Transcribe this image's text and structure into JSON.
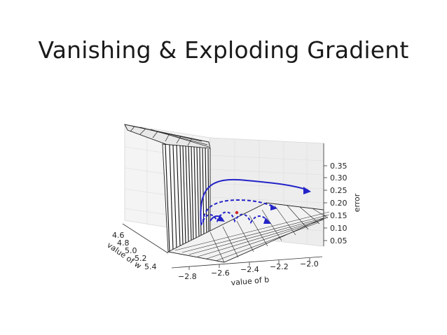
{
  "slide": {
    "title": "Vanishing & Exploding Gradient"
  },
  "chart_data": {
    "type": "surface",
    "axes": {
      "b": {
        "label": "value of b",
        "ticks": [
          "−2.8",
          "−2.6",
          "−2.4",
          "−2.2",
          "−2.0"
        ],
        "range": [
          -2.9,
          -1.95
        ]
      },
      "w": {
        "label": "value of w",
        "ticks": [
          "4.6",
          "4.8",
          "5.0",
          "5.2",
          "5.4"
        ],
        "range": [
          4.55,
          5.45
        ]
      },
      "error": {
        "label": "error",
        "ticks": [
          "0.05",
          "0.10",
          "0.15",
          "0.20",
          "0.25",
          "0.30",
          "0.35"
        ],
        "range": [
          0.03,
          0.37
        ]
      }
    },
    "grid": true,
    "surface_color": "#222222",
    "trajectory_color": "#2222cc",
    "minimum_marker_color": "#cc2222",
    "trajectories": [
      {
        "style": "solid",
        "note": "exploding"
      },
      {
        "style": "dashed",
        "note": "oscillating"
      },
      {
        "style": "dotted",
        "note": "vanishing"
      }
    ]
  }
}
